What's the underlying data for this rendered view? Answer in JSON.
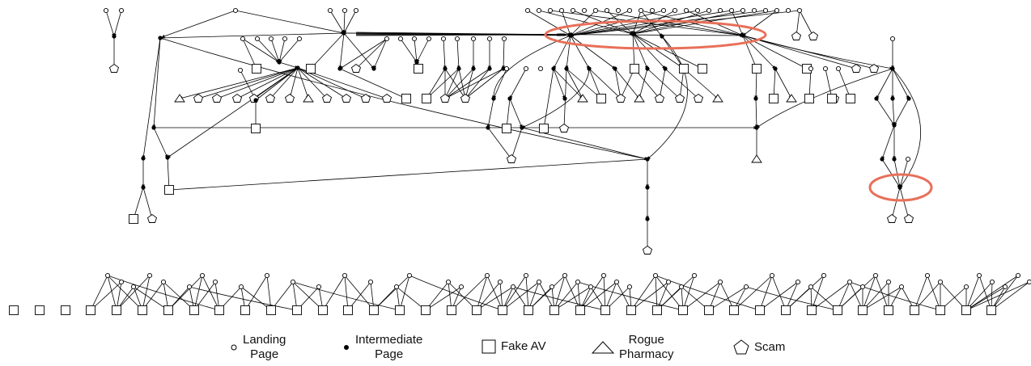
{
  "legend": {
    "landing": "Landing\nPage",
    "intermediate": "Intermediate\nPage",
    "fakeav": "Fake AV",
    "pharmacy": "Rogue\nPharmacy",
    "scam": "Scam"
  },
  "colors": {
    "edge": "#000000",
    "node": "#000000",
    "highlight": "#e8705a"
  },
  "node_types": [
    "landing-page",
    "intermediate-page",
    "fake-av",
    "rogue-pharmacy",
    "scam"
  ]
}
